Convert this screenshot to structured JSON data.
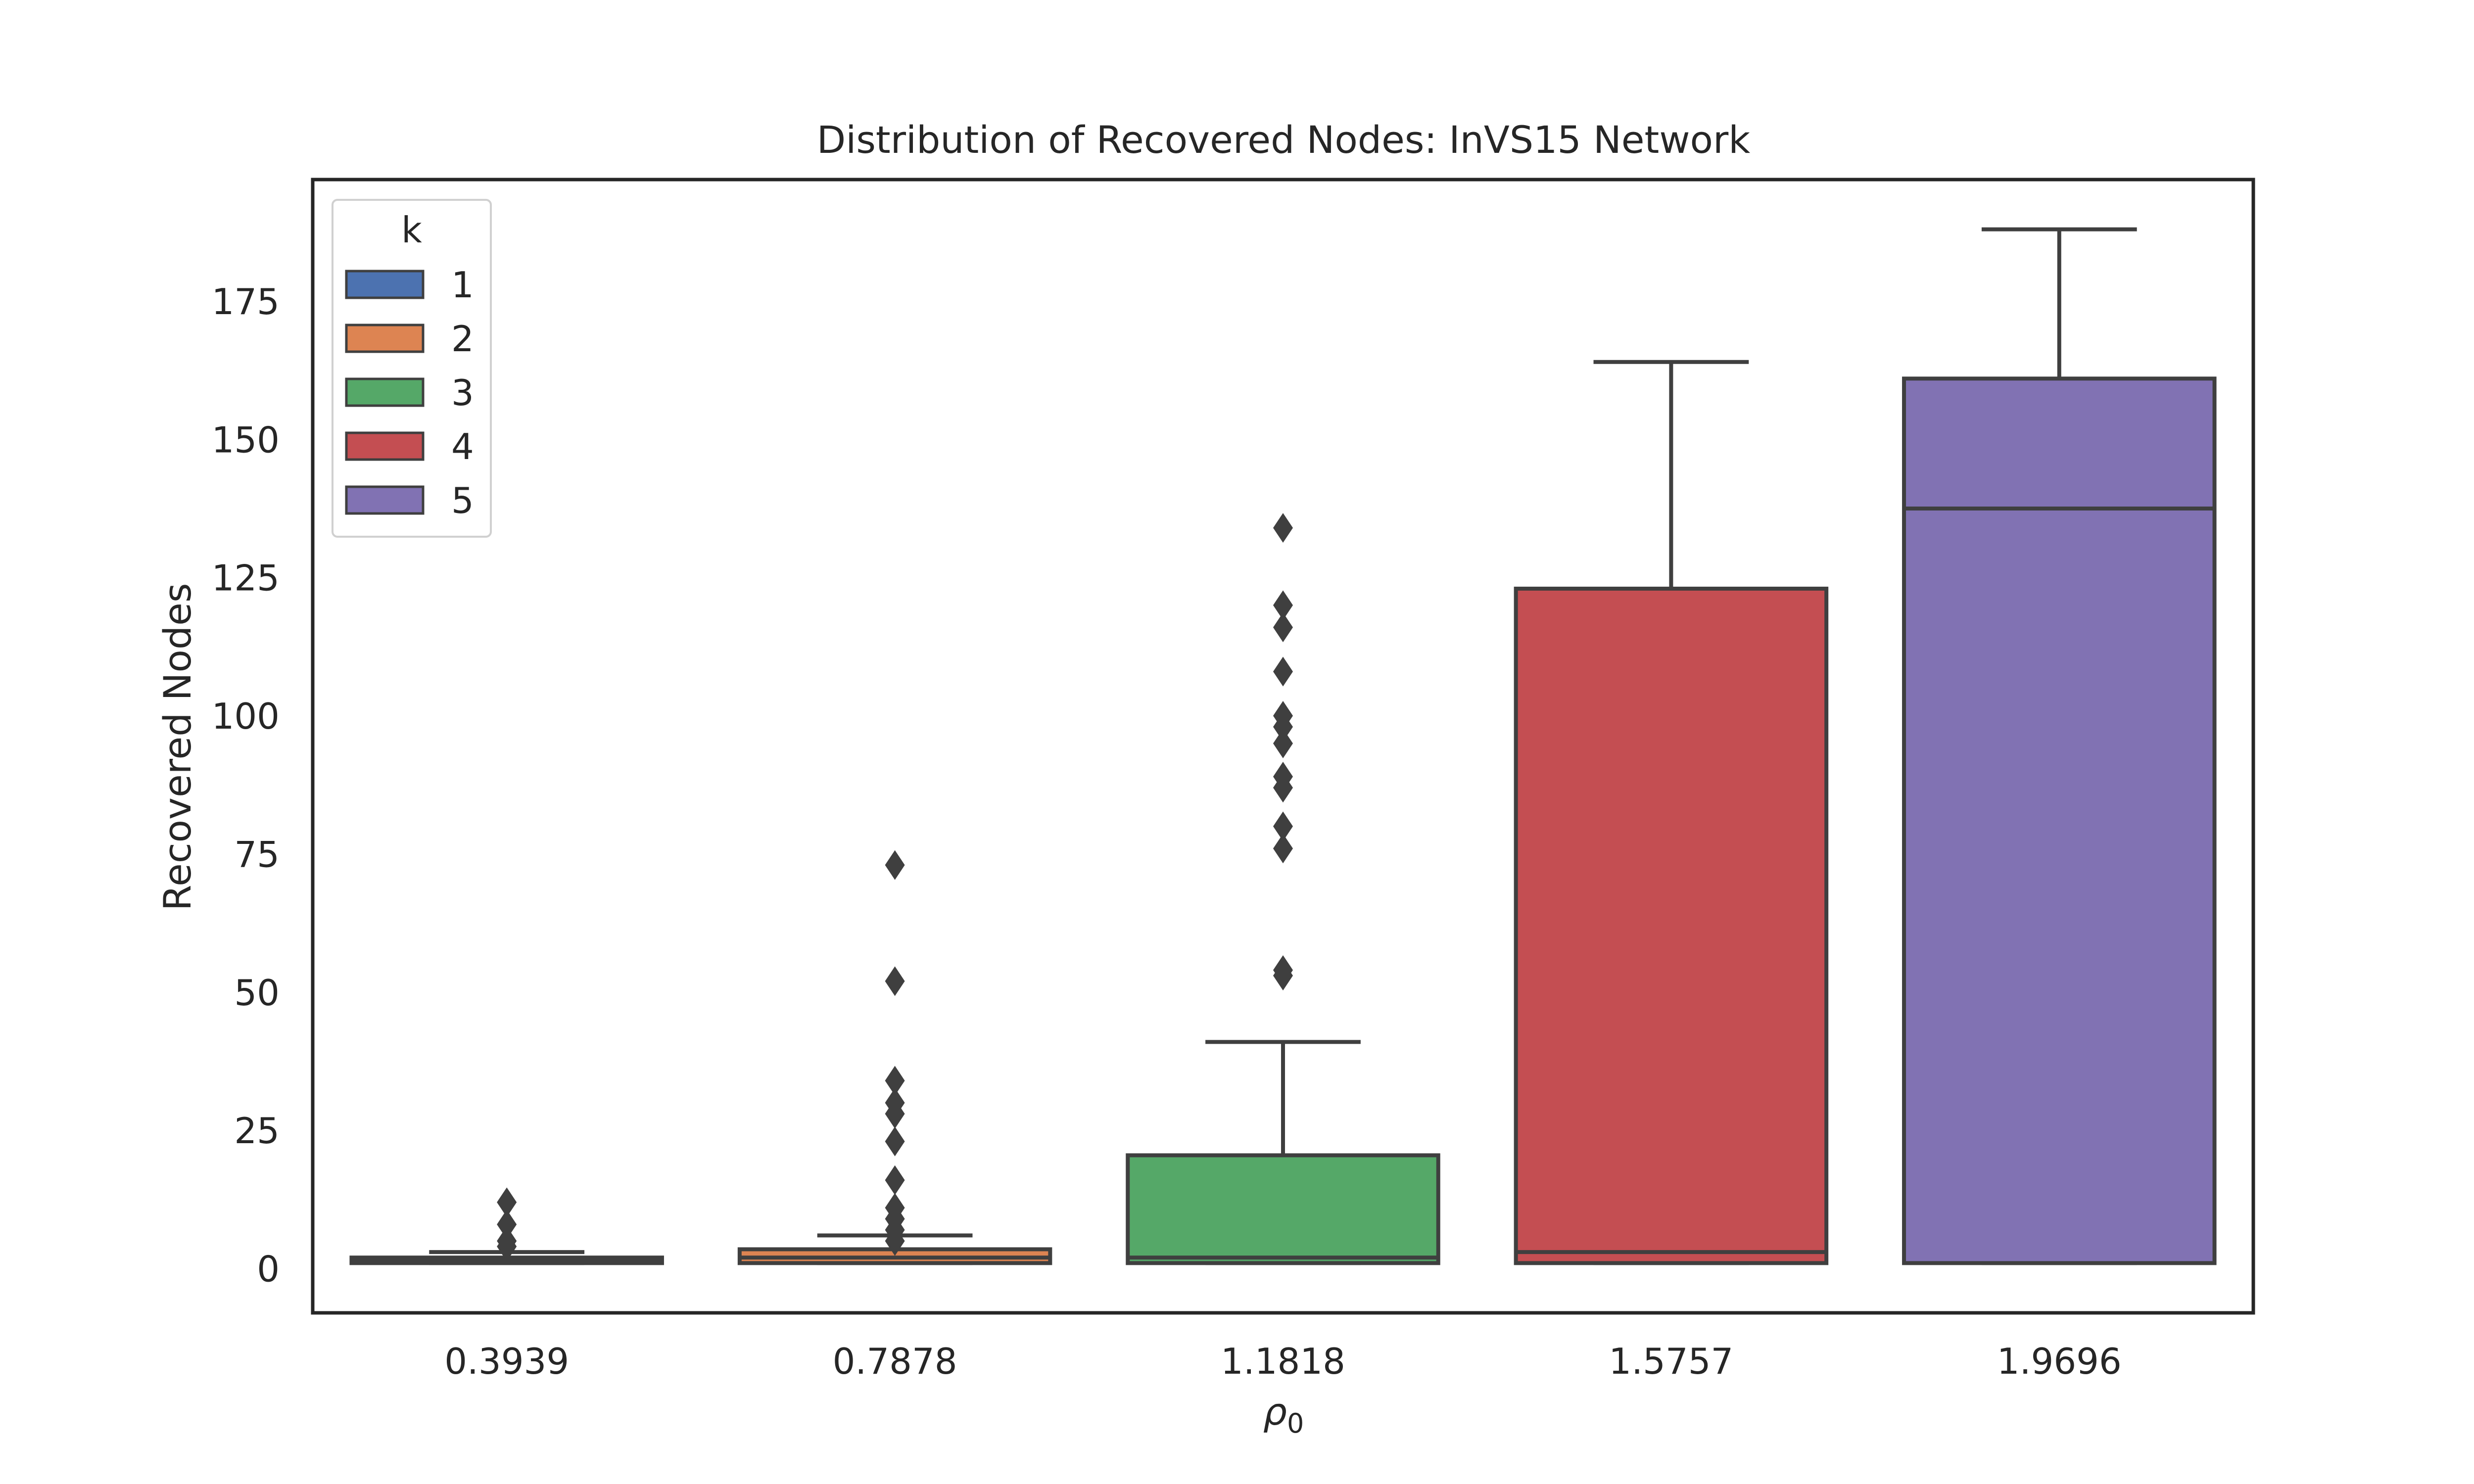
{
  "chart_data": {
    "type": "box",
    "title": "Distribution of Recovered Nodes: InVS15 Network",
    "xlabel": "ρ",
    "xlabel_subscript": "0",
    "ylabel": "Recovered Nodes",
    "categories": [
      "0.3939",
      "0.7878",
      "1.1818",
      "1.5757",
      "1.9696"
    ],
    "ylim": [
      -8,
      197
    ],
    "yticks": [
      "0",
      "25",
      "50",
      "75",
      "100",
      "125",
      "150",
      "175"
    ],
    "grid": false,
    "legend": {
      "title": "k",
      "position": "top-left",
      "entries": [
        "1",
        "2",
        "3",
        "4",
        "5"
      ]
    },
    "colors": [
      "#4c72b0",
      "#dd8452",
      "#55a868",
      "#c44e52",
      "#8172b3"
    ],
    "edge_color": "#3f3f3f",
    "boxes": [
      {
        "hue": "1",
        "q1": 1,
        "median": 1.5,
        "q3": 2,
        "whisker_low": 1,
        "whisker_high": 3,
        "outliers": [
          4,
          5,
          8,
          12
        ]
      },
      {
        "hue": "2",
        "q1": 1,
        "median": 2,
        "q3": 3.5,
        "whisker_low": 1,
        "whisker_high": 6,
        "outliers": [
          5,
          7,
          9,
          11,
          16,
          23,
          28,
          30,
          34,
          52,
          73
        ]
      },
      {
        "hue": "3",
        "q1": 1,
        "median": 2,
        "q3": 20.5,
        "whisker_low": 1,
        "whisker_high": 41,
        "outliers": [
          53,
          54,
          76,
          80,
          87,
          89,
          95,
          98,
          100,
          108,
          116,
          120,
          134
        ]
      },
      {
        "hue": "4",
        "q1": 1,
        "median": 3,
        "q3": 123,
        "whisker_low": 1,
        "whisker_high": 164,
        "outliers": []
      },
      {
        "hue": "5",
        "q1": 1,
        "median": 137.5,
        "q3": 161,
        "whisker_low": 1,
        "whisker_high": 188,
        "outliers": []
      }
    ]
  }
}
